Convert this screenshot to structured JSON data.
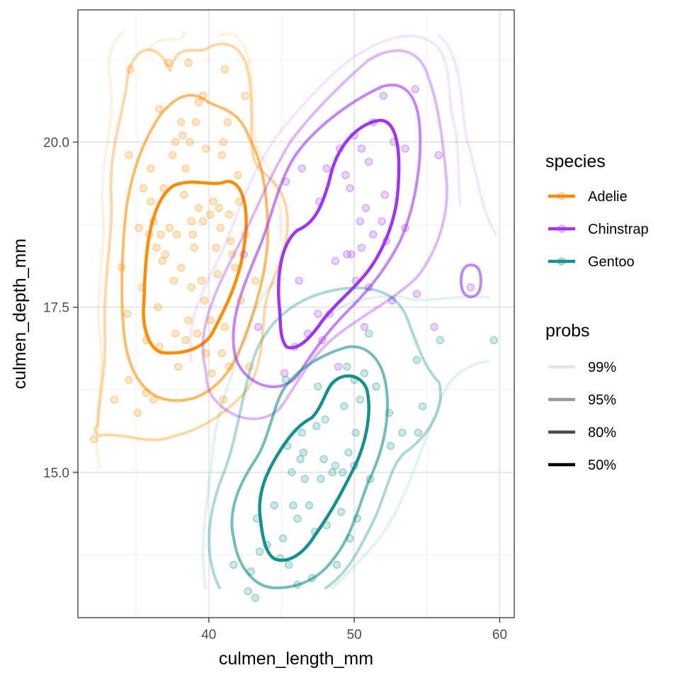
{
  "chart_data": {
    "type": "scatter",
    "overlay": "density-contours",
    "xlabel": "culmen_length_mm",
    "ylabel": "culmen_depth_mm",
    "xlim": [
      31.0,
      61.0
    ],
    "ylim": [
      12.8,
      22.0
    ],
    "x_ticks": [
      40,
      50,
      60
    ],
    "x_tick_labels": [
      "40",
      "50",
      "60"
    ],
    "y_ticks": [
      15.0,
      17.5,
      20.0
    ],
    "y_tick_labels": [
      "15.0",
      "17.5",
      "20.0"
    ],
    "grid": true,
    "legend_position": "right",
    "legend": {
      "species_title": "species",
      "probs_title": "probs",
      "species": [
        {
          "label": "Adelie",
          "color": "#ff8c00"
        },
        {
          "label": "Chinstrap",
          "color": "#a034f0"
        },
        {
          "label": "Gentoo",
          "color": "#159090"
        }
      ],
      "probs": [
        {
          "label": "99%",
          "shade": "#e5e5e5"
        },
        {
          "label": "95%",
          "shade": "#999999"
        },
        {
          "label": "80%",
          "shade": "#4d4d4d"
        },
        {
          "label": "50%",
          "shade": "#000000"
        }
      ]
    },
    "series": [
      {
        "name": "Adelie",
        "color": "#ff8c00",
        "points": [
          [
            34.6,
            21.1
          ],
          [
            37.2,
            21.2
          ],
          [
            38.6,
            21.2
          ],
          [
            41.1,
            21.1
          ],
          [
            42.5,
            20.7
          ],
          [
            39.6,
            20.7
          ],
          [
            39.3,
            20.6
          ],
          [
            36.6,
            20.5
          ],
          [
            38.1,
            20.3
          ],
          [
            37.7,
            20.0
          ],
          [
            38.2,
            20.1
          ],
          [
            38.7,
            20.0
          ],
          [
            39.1,
            20.3
          ],
          [
            41.3,
            20.3
          ],
          [
            41.0,
            20.0
          ],
          [
            40.9,
            19.8
          ],
          [
            34.5,
            19.8
          ],
          [
            36.0,
            19.6
          ],
          [
            37.5,
            19.8
          ],
          [
            38.4,
            19.6
          ],
          [
            39.8,
            19.9
          ],
          [
            42.0,
            19.5
          ],
          [
            36.0,
            19.1
          ],
          [
            40.3,
            19.1
          ],
          [
            35.5,
            19.3
          ],
          [
            36.9,
            19.3
          ],
          [
            38.3,
            19.2
          ],
          [
            39.3,
            19.0
          ],
          [
            40.7,
            19.0
          ],
          [
            42.1,
            19.1
          ],
          [
            41.4,
            18.9
          ],
          [
            36.2,
            18.8
          ],
          [
            35.2,
            18.7
          ],
          [
            38.8,
            18.8
          ],
          [
            40.1,
            18.9
          ],
          [
            37.3,
            18.7
          ],
          [
            39.6,
            18.8
          ],
          [
            40.8,
            18.7
          ],
          [
            41.5,
            18.5
          ],
          [
            36.7,
            18.6
          ],
          [
            35.9,
            18.6
          ],
          [
            37.8,
            18.6
          ],
          [
            38.9,
            18.6
          ],
          [
            36.4,
            18.4
          ],
          [
            37.0,
            18.3
          ],
          [
            39.0,
            18.4
          ],
          [
            40.5,
            18.4
          ],
          [
            41.6,
            18.3
          ],
          [
            42.5,
            18.6
          ],
          [
            34.0,
            18.1
          ],
          [
            36.8,
            18.2
          ],
          [
            38.1,
            18.1
          ],
          [
            39.5,
            17.9
          ],
          [
            40.6,
            18.0
          ],
          [
            41.8,
            18.1
          ],
          [
            37.6,
            17.9
          ],
          [
            35.4,
            17.8
          ],
          [
            38.8,
            17.8
          ],
          [
            39.7,
            17.6
          ],
          [
            42.2,
            17.6
          ],
          [
            34.4,
            17.4
          ],
          [
            36.5,
            17.5
          ],
          [
            38.6,
            17.3
          ],
          [
            40.1,
            17.3
          ],
          [
            37.7,
            17.1
          ],
          [
            39.2,
            17.1
          ],
          [
            41.1,
            17.2
          ],
          [
            35.7,
            17.0
          ],
          [
            36.6,
            16.9
          ],
          [
            39.8,
            16.8
          ],
          [
            40.9,
            16.8
          ],
          [
            37.9,
            16.6
          ],
          [
            38.4,
            17.0
          ],
          [
            41.4,
            16.6
          ],
          [
            35.7,
            16.2
          ],
          [
            34.5,
            16.4
          ],
          [
            33.5,
            16.1
          ],
          [
            32.1,
            15.5
          ],
          [
            36.2,
            16.1
          ],
          [
            40.2,
            16.5
          ],
          [
            42.8,
            16.6
          ],
          [
            43.2,
            17.9
          ],
          [
            41.0,
            16.1
          ],
          [
            35.1,
            15.9
          ]
        ]
      },
      {
        "name": "Chinstrap",
        "color": "#a034f0",
        "points": [
          [
            54.2,
            20.8
          ],
          [
            52.0,
            20.7
          ],
          [
            51.3,
            20.3
          ],
          [
            50.0,
            20.1
          ],
          [
            52.7,
            20.0
          ],
          [
            49.0,
            19.9
          ],
          [
            50.5,
            19.9
          ],
          [
            51.0,
            19.7
          ],
          [
            53.5,
            19.9
          ],
          [
            55.8,
            19.8
          ],
          [
            46.4,
            19.6
          ],
          [
            48.1,
            19.6
          ],
          [
            49.4,
            19.5
          ],
          [
            45.3,
            19.4
          ],
          [
            49.7,
            19.3
          ],
          [
            50.8,
            19.0
          ],
          [
            52.1,
            19.2
          ],
          [
            47.6,
            19.1
          ],
          [
            50.4,
            18.8
          ],
          [
            51.3,
            18.6
          ],
          [
            49.8,
            18.3
          ],
          [
            51.9,
            18.8
          ],
          [
            52.2,
            18.5
          ],
          [
            48.7,
            18.2
          ],
          [
            50.5,
            18.4
          ],
          [
            53.5,
            18.7
          ],
          [
            49.5,
            18.3
          ],
          [
            46.2,
            17.9
          ],
          [
            48.3,
            17.4
          ],
          [
            51.0,
            17.8
          ],
          [
            50.1,
            17.9
          ],
          [
            52.6,
            17.6
          ],
          [
            54.3,
            17.7
          ],
          [
            47.5,
            17.4
          ],
          [
            46.8,
            17.1
          ],
          [
            45.9,
            16.9
          ],
          [
            50.7,
            17.2
          ],
          [
            47.8,
            17.0
          ],
          [
            58.0,
            17.8
          ],
          [
            55.5,
            17.2
          ],
          [
            45.2,
            16.5
          ],
          [
            48.9,
            16.6
          ],
          [
            43.4,
            17.2
          ],
          [
            42.4,
            18.3
          ]
        ]
      },
      {
        "name": "Gentoo",
        "color": "#159090",
        "points": [
          [
            59.6,
            17.0
          ],
          [
            55.9,
            17.0
          ],
          [
            54.3,
            16.7
          ],
          [
            51.0,
            17.1
          ],
          [
            49.5,
            16.6
          ],
          [
            50.0,
            16.4
          ],
          [
            51.5,
            16.3
          ],
          [
            45.3,
            16.4
          ],
          [
            47.5,
            16.3
          ],
          [
            49.3,
            16.0
          ],
          [
            50.4,
            16.1
          ],
          [
            54.7,
            16.0
          ],
          [
            52.4,
            15.9
          ],
          [
            48.0,
            15.8
          ],
          [
            46.4,
            15.6
          ],
          [
            47.4,
            15.7
          ],
          [
            50.1,
            15.6
          ],
          [
            53.3,
            15.6
          ],
          [
            54.4,
            15.6
          ],
          [
            52.5,
            15.4
          ],
          [
            45.4,
            15.4
          ],
          [
            46.3,
            15.2
          ],
          [
            47.9,
            15.2
          ],
          [
            48.7,
            15.1
          ],
          [
            49.2,
            15.0
          ],
          [
            50.0,
            15.1
          ],
          [
            51.1,
            14.9
          ],
          [
            45.7,
            15.0
          ],
          [
            46.6,
            14.9
          ],
          [
            48.5,
            15.0
          ],
          [
            46.9,
            14.5
          ],
          [
            44.5,
            14.5
          ],
          [
            43.3,
            14.3
          ],
          [
            46.1,
            14.3
          ],
          [
            49.1,
            14.4
          ],
          [
            50.2,
            14.3
          ],
          [
            48.1,
            14.2
          ],
          [
            45.1,
            14.0
          ],
          [
            44.0,
            13.9
          ],
          [
            47.3,
            14.1
          ],
          [
            49.7,
            14.0
          ],
          [
            42.9,
            13.5
          ],
          [
            43.5,
            13.8
          ],
          [
            45.5,
            13.6
          ],
          [
            47.1,
            13.4
          ],
          [
            46.1,
            13.3
          ],
          [
            48.8,
            13.6
          ],
          [
            44.9,
            13.7
          ],
          [
            41.7,
            13.6
          ],
          [
            42.7,
            13.2
          ],
          [
            43.2,
            13.1
          ],
          [
            45.8,
            14.5
          ],
          [
            47.7,
            14.9
          ],
          [
            46.5,
            15.3
          ],
          [
            50.7,
            16.5
          ],
          [
            49.6,
            15.3
          ]
        ]
      }
    ]
  }
}
